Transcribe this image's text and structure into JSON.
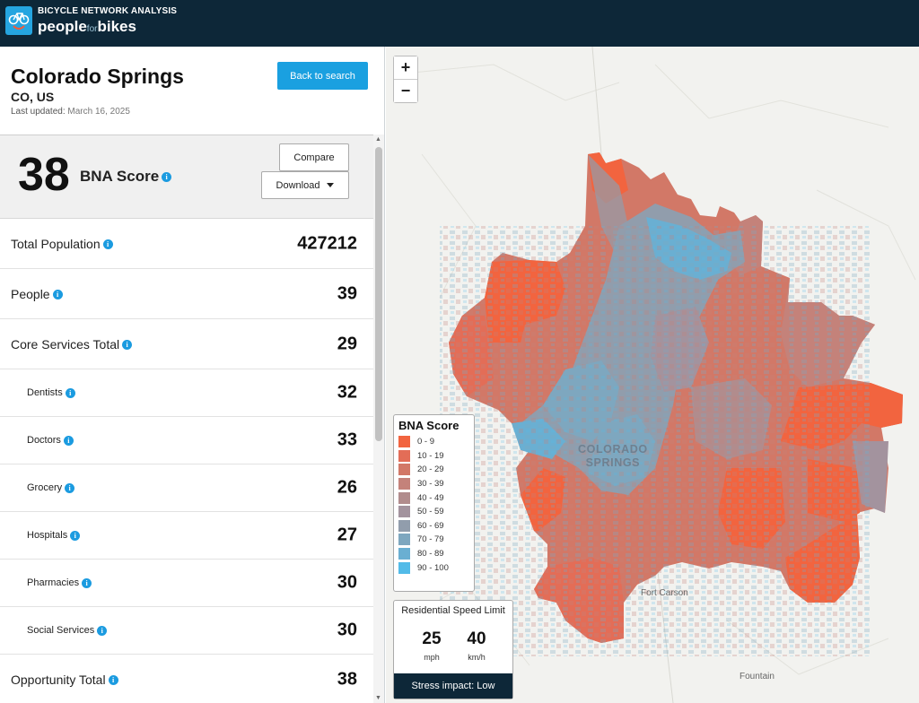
{
  "header": {
    "org_line": "BICYCLE NETWORK ANALYSIS",
    "brand_people": "people",
    "brand_for": "for",
    "brand_bikes": "bikes"
  },
  "city": {
    "name": "Colorado Springs",
    "state": "CO, US",
    "updated_label": "Last updated:",
    "updated_date": "March 16, 2025",
    "back_label": "Back to search"
  },
  "score": {
    "value": "38",
    "label": "BNA Score",
    "compare_label": "Compare",
    "download_label": "Download"
  },
  "metrics": [
    {
      "label": "Total Population",
      "value": "427212",
      "level": "main"
    },
    {
      "label": "People",
      "value": "39",
      "level": "main"
    },
    {
      "label": "Core Services Total",
      "value": "29",
      "level": "main"
    },
    {
      "label": "Dentists",
      "value": "32",
      "level": "sub"
    },
    {
      "label": "Doctors",
      "value": "33",
      "level": "sub"
    },
    {
      "label": "Grocery",
      "value": "26",
      "level": "sub"
    },
    {
      "label": "Hospitals",
      "value": "27",
      "level": "sub"
    },
    {
      "label": "Pharmacies",
      "value": "30",
      "level": "sub"
    },
    {
      "label": "Social Services",
      "value": "30",
      "level": "sub"
    },
    {
      "label": "Opportunity Total",
      "value": "38",
      "level": "main"
    }
  ],
  "map": {
    "zoom_in": "+",
    "zoom_out": "−",
    "city_label_1": "COLORADO",
    "city_label_2": "SPRINGS",
    "place_fort_carson": "Fort Carson",
    "place_fountain": "Fountain",
    "legend": {
      "title": "BNA Score",
      "items": [
        {
          "label": "0 - 9",
          "color": "#f2643f"
        },
        {
          "label": "10 - 19",
          "color": "#e36d57"
        },
        {
          "label": "20 - 29",
          "color": "#d27867"
        },
        {
          "label": "30 - 39",
          "color": "#c4827a"
        },
        {
          "label": "40 - 49",
          "color": "#b18c8d"
        },
        {
          "label": "50 - 59",
          "color": "#a3939e"
        },
        {
          "label": "60 - 69",
          "color": "#919dac"
        },
        {
          "label": "70 - 79",
          "color": "#7ea7bf"
        },
        {
          "label": "80 - 89",
          "color": "#6aafd2"
        },
        {
          "label": "90 - 100",
          "color": "#52bbe8"
        }
      ]
    },
    "speed": {
      "title": "Residential Speed Limit",
      "mph_value": "25",
      "mph_unit": "mph",
      "kmh_value": "40",
      "kmh_unit": "km/h",
      "stress": "Stress impact: Low"
    }
  },
  "colors": {
    "header_bg": "#0d2738",
    "accent": "#1aa0e0"
  }
}
